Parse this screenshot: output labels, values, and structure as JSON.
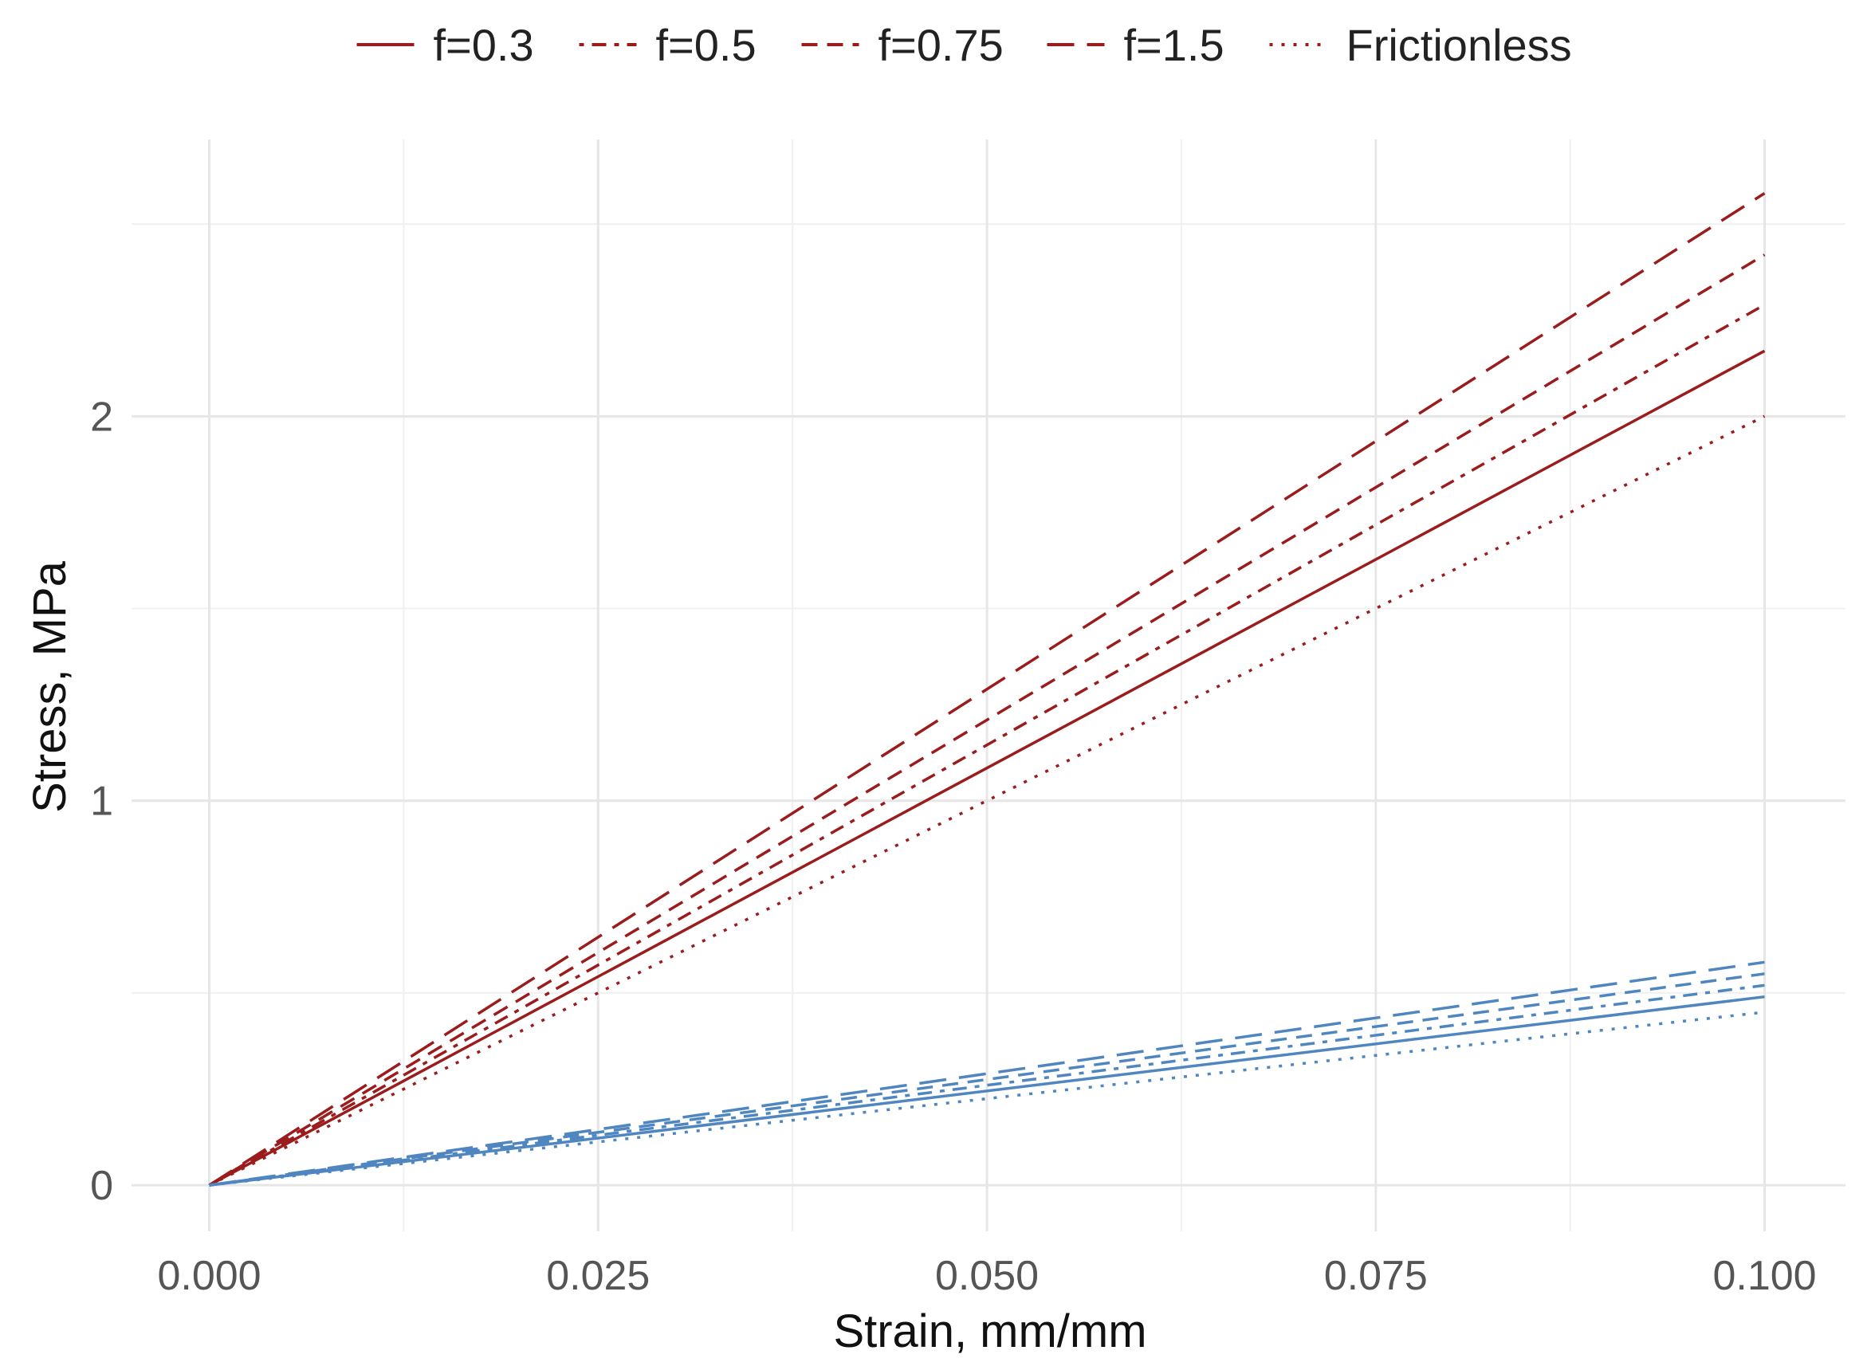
{
  "chart_data": {
    "type": "line",
    "title": "",
    "xlabel": "Strain, mm/mm",
    "ylabel": "Stress, MPa",
    "xlim": [
      -0.005,
      0.1052
    ],
    "ylim": [
      -0.12,
      2.72
    ],
    "xticks": [
      0.0,
      0.025,
      0.05,
      0.075,
      0.1
    ],
    "xtick_labels": [
      "0.000",
      "0.025",
      "0.050",
      "0.075",
      "0.100"
    ],
    "xminor": [
      0.0125,
      0.0375,
      0.0625,
      0.0875
    ],
    "yticks": [
      0,
      1,
      2
    ],
    "ytick_labels": [
      "0",
      "1",
      "2"
    ],
    "yminor": [
      0.5,
      1.5,
      2.5
    ],
    "grid": true,
    "legend_position": "top",
    "legend": [
      {
        "label": "f=0.3",
        "style": "solid"
      },
      {
        "label": "f=0.5",
        "style": "dotdash"
      },
      {
        "label": "f=0.75",
        "style": "dashed"
      },
      {
        "label": "f=1.5",
        "style": "longdash"
      },
      {
        "label": "Frictionless",
        "style": "dotted"
      }
    ],
    "colors": {
      "group_a": "#9b1c1c",
      "group_b": "#4f86c0"
    },
    "series": [
      {
        "name": "f=0.3",
        "group": "group_a",
        "style": "solid",
        "x": [
          0,
          0.1
        ],
        "y": [
          0,
          2.17
        ]
      },
      {
        "name": "f=0.5",
        "group": "group_a",
        "style": "dotdash",
        "x": [
          0,
          0.1
        ],
        "y": [
          0,
          2.29
        ]
      },
      {
        "name": "f=0.75",
        "group": "group_a",
        "style": "dashed",
        "x": [
          0,
          0.1
        ],
        "y": [
          0,
          2.42
        ]
      },
      {
        "name": "f=1.5",
        "group": "group_a",
        "style": "longdash",
        "x": [
          0,
          0.1
        ],
        "y": [
          0,
          2.58
        ]
      },
      {
        "name": "Frictionless",
        "group": "group_a",
        "style": "dotted",
        "x": [
          0,
          0.1
        ],
        "y": [
          0,
          2.0
        ]
      },
      {
        "name": "f=0.3",
        "group": "group_b",
        "style": "solid",
        "x": [
          0,
          0.1
        ],
        "y": [
          0,
          0.49
        ]
      },
      {
        "name": "f=0.5",
        "group": "group_b",
        "style": "dotdash",
        "x": [
          0,
          0.1
        ],
        "y": [
          0,
          0.52
        ]
      },
      {
        "name": "f=0.75",
        "group": "group_b",
        "style": "dashed",
        "x": [
          0,
          0.1
        ],
        "y": [
          0,
          0.55
        ]
      },
      {
        "name": "f=1.5",
        "group": "group_b",
        "style": "longdash",
        "x": [
          0,
          0.1
        ],
        "y": [
          0,
          0.58
        ]
      },
      {
        "name": "Frictionless",
        "group": "group_b",
        "style": "dotted",
        "x": [
          0,
          0.1
        ],
        "y": [
          0,
          0.45
        ]
      }
    ]
  }
}
